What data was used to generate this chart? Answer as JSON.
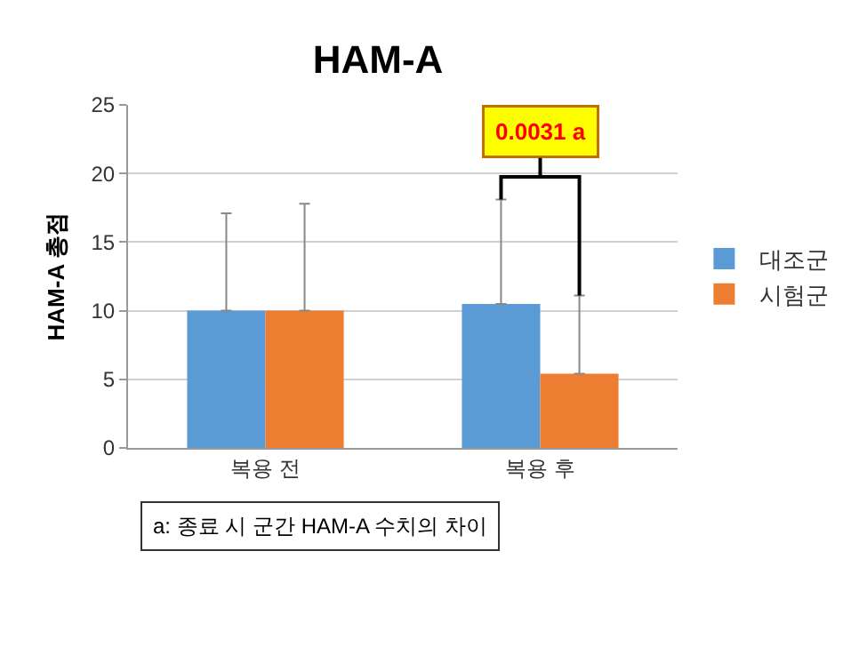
{
  "chart_data": {
    "type": "bar",
    "title": "HAM-A",
    "ylabel": "HAM-A 총점",
    "categories": [
      "복용 전",
      "복용 후"
    ],
    "series": [
      {
        "name": "대조군",
        "color": "#5b9bd5",
        "values": [
          10,
          10.5
        ],
        "errors": [
          [
            10,
            17.1
          ],
          [
            10.5,
            18.1
          ]
        ]
      },
      {
        "name": "시험군",
        "color": "#ed7d31",
        "values": [
          10,
          5.4
        ],
        "errors": [
          [
            10,
            17.8
          ],
          [
            5.4,
            11.1
          ]
        ]
      }
    ],
    "ylim": [
      0,
      25
    ],
    "yticks": [
      0,
      5,
      10,
      15,
      20,
      25
    ],
    "grid": "y",
    "legend": "right",
    "annotations": [
      "0.0031 a",
      "a: 종료 시 군간 HAM-A 수치의 차이"
    ]
  }
}
